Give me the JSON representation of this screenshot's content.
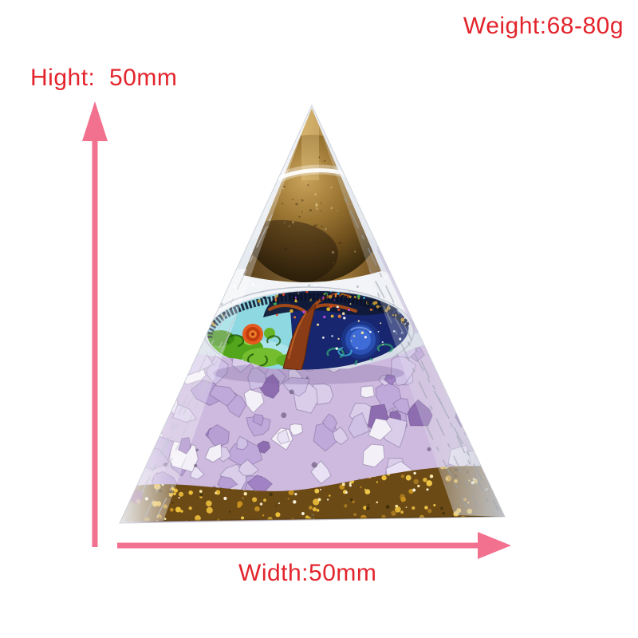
{
  "labels": {
    "weight": "Weight:68-80g",
    "height": "Hight:  50mm",
    "width": "Width:50mm"
  },
  "colors": {
    "label_text": "#e3242c",
    "dimension_arrow": "#f1718f",
    "resin": "#e2e6ee",
    "tigereye_sphere": "#8a6428",
    "amethyst_chips": "#b79fd4",
    "gold_flakes": "#e8b83a",
    "disc_night_blue": "#17266e",
    "disc_sky_cyan": "#8ed8e2"
  },
  "figure": {
    "name": "orgonite-crystal-pyramid",
    "elements": [
      "tiger-eye-sphere",
      "tree-of-life-disc",
      "amethyst-chips",
      "gold-foil-base"
    ]
  }
}
